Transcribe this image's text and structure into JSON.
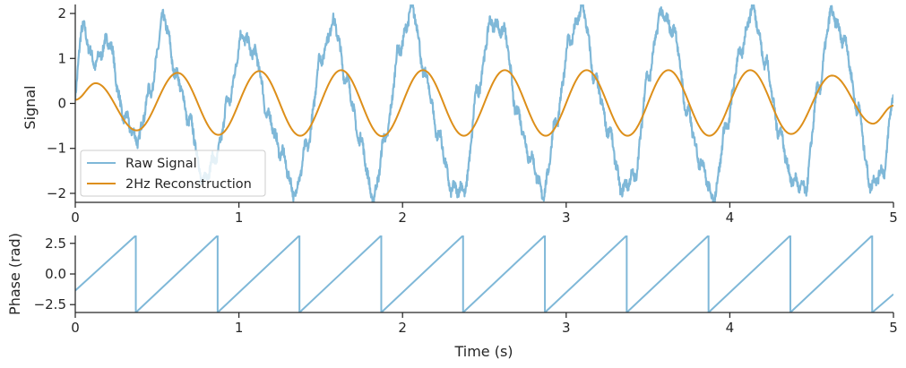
{
  "chart_data": [
    {
      "type": "line",
      "title": "",
      "xlabel": "",
      "ylabel": "Signal",
      "xlim": [
        0,
        5
      ],
      "ylim": [
        -2.2,
        2.2
      ],
      "xticks": [
        "0",
        "1",
        "2",
        "3",
        "4",
        "5"
      ],
      "yticks": [
        "−2",
        "−1",
        "0",
        "1",
        "2"
      ],
      "legend": "lower-left",
      "grid": false,
      "series": [
        {
          "name": "Raw Signal",
          "color": "#7fb8d8",
          "description_of_shape": "noisy oscillation combining ~2Hz and ~7Hz components with noise, spanning about -2.2 to 2.2",
          "x": [
            0.0,
            0.04,
            0.12,
            0.2,
            0.3,
            0.38,
            0.46,
            0.54,
            0.62,
            0.7,
            0.78,
            0.86,
            0.94,
            1.02,
            1.1,
            1.18,
            1.26,
            1.34,
            1.42,
            1.5,
            1.58,
            1.66,
            1.74,
            1.82,
            1.9,
            1.98,
            2.06,
            2.14,
            2.22,
            2.3,
            2.38,
            2.46,
            2.54,
            2.62,
            2.7,
            2.78,
            2.86,
            2.94,
            3.02,
            3.1,
            3.18,
            3.26,
            3.34,
            3.42,
            3.5,
            3.58,
            3.66,
            3.74,
            3.82,
            3.9,
            3.98,
            4.06,
            4.14,
            4.22,
            4.3,
            4.38,
            4.46,
            4.54,
            4.62,
            4.7,
            4.78,
            4.86,
            4.94,
            5.0
          ],
          "y": [
            0.2,
            1.7,
            0.9,
            1.4,
            -0.3,
            -0.8,
            0.3,
            1.9,
            0.6,
            -0.4,
            -1.7,
            -1.2,
            0.1,
            1.5,
            1.1,
            -0.3,
            -1.1,
            -2.0,
            -0.9,
            1.0,
            1.8,
            0.5,
            -0.8,
            -2.1,
            -0.7,
            1.2,
            2.1,
            0.6,
            -0.7,
            -1.9,
            -1.9,
            0.3,
            1.8,
            1.6,
            -0.2,
            -1.2,
            -2.0,
            -0.4,
            1.4,
            2.1,
            0.5,
            -0.6,
            -1.9,
            -1.6,
            0.6,
            2.0,
            1.6,
            -0.2,
            -1.3,
            -2.1,
            -0.5,
            1.1,
            2.1,
            0.9,
            -0.6,
            -1.7,
            -1.9,
            0.3,
            2.0,
            1.4,
            -0.1,
            -1.8,
            -1.5,
            0.2
          ]
        },
        {
          "name": "2Hz Reconstruction",
          "color": "#dd8f1a",
          "x": [
            0.0,
            0.125,
            0.375,
            0.625,
            0.875,
            1.125,
            1.375,
            1.625,
            1.875,
            2.125,
            2.375,
            2.625,
            2.875,
            3.125,
            3.375,
            3.625,
            3.875,
            4.125,
            4.375,
            4.625,
            4.875,
            5.0
          ],
          "y": [
            0.08,
            0.45,
            -0.6,
            0.68,
            -0.7,
            0.72,
            -0.72,
            0.74,
            -0.73,
            0.74,
            -0.72,
            0.74,
            -0.72,
            0.74,
            -0.72,
            0.74,
            -0.72,
            0.74,
            -0.68,
            0.62,
            -0.45,
            -0.05
          ]
        }
      ]
    },
    {
      "type": "line",
      "title": "",
      "xlabel": "Time (s)",
      "ylabel": "Phase (rad)",
      "xlim": [
        0,
        5
      ],
      "ylim": [
        -3.14159,
        3.14159
      ],
      "xticks": [
        "0",
        "1",
        "2",
        "3",
        "4",
        "5"
      ],
      "yticks": [
        "−2.5",
        "0.0",
        "2.5"
      ],
      "grid": false,
      "series": [
        {
          "name": "",
          "color": "#7fb8d8",
          "description_of_shape": "sawtooth wrapped phase, 2 Hz, wrapping from +π to −π at the listed times",
          "start_value": -1.35,
          "wrap_times": [
            0.37,
            0.87,
            1.37,
            1.87,
            2.37,
            2.87,
            3.37,
            3.87,
            4.37,
            4.87
          ],
          "end_value": -1.65
        }
      ]
    }
  ]
}
